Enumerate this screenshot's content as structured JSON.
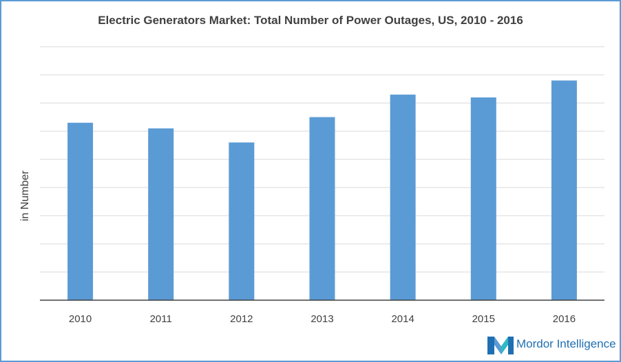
{
  "chart_data": {
    "type": "bar",
    "title": "Electric Generators Market: Total Number of Power Outages, US, 2010 - 2016",
    "xlabel": "",
    "ylabel": "in Number",
    "categories": [
      "2010",
      "2011",
      "2012",
      "2013",
      "2014",
      "2015",
      "2016"
    ],
    "values": [
      63,
      61,
      56,
      65,
      73,
      72,
      78
    ],
    "ylim": [
      0,
      90
    ],
    "gridlines": 9,
    "grid": true,
    "bar_color": "#5b9bd5"
  },
  "branding": {
    "logo_text": "Mordor Intelligence",
    "logo_color": "#1f6fb2"
  }
}
